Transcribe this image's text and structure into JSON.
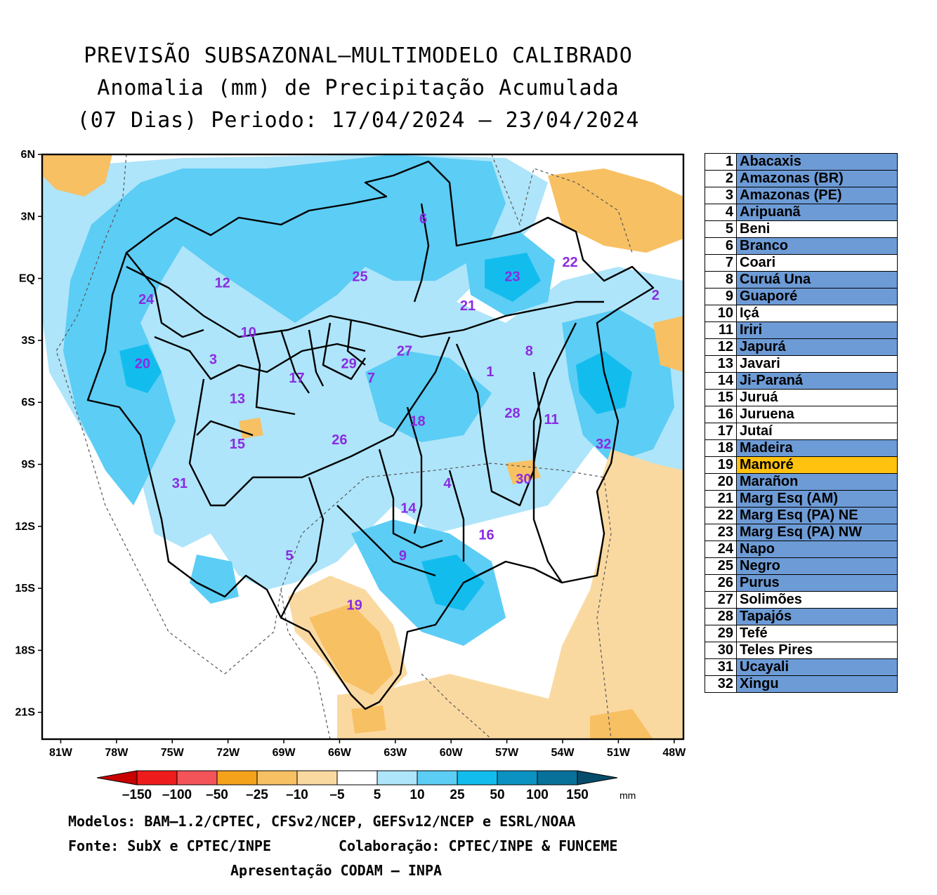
{
  "title": {
    "line1": "PREVISÃO SUBSAZONAL–MULTIMODELO CALIBRADO",
    "line2": "Anomalia (mm) de Precipitação Acumulada",
    "line3": "(07 Dias) Periodo: 17/04/2024 – 23/04/2024"
  },
  "map": {
    "lat_labels": [
      "6N",
      "3N",
      "EQ",
      "3S",
      "6S",
      "9S",
      "12S",
      "15S",
      "18S",
      "21S"
    ],
    "lon_labels": [
      "81W",
      "78W",
      "75W",
      "72W",
      "69W",
      "66W",
      "63W",
      "60W",
      "57W",
      "54W",
      "51W",
      "48W"
    ],
    "basin_labels": [
      {
        "n": "1",
        "lon": -57.9,
        "lat": -4.5
      },
      {
        "n": "2",
        "lon": -49.0,
        "lat": -0.8
      },
      {
        "n": "3",
        "lon": -72.8,
        "lat": -3.9
      },
      {
        "n": "4",
        "lon": -60.2,
        "lat": -9.9
      },
      {
        "n": "5",
        "lon": -68.7,
        "lat": -13.4
      },
      {
        "n": "6",
        "lon": -61.5,
        "lat": 2.9
      },
      {
        "n": "7",
        "lon": -64.3,
        "lat": -4.8
      },
      {
        "n": "8",
        "lon": -55.8,
        "lat": -3.5
      },
      {
        "n": "9",
        "lon": -62.6,
        "lat": -13.4
      },
      {
        "n": "10",
        "lon": -70.9,
        "lat": -2.6
      },
      {
        "n": "11",
        "lon": -54.6,
        "lat": -6.8
      },
      {
        "n": "12",
        "lon": -72.3,
        "lat": -0.2
      },
      {
        "n": "13",
        "lon": -71.5,
        "lat": -5.8
      },
      {
        "n": "14",
        "lon": -62.3,
        "lat": -11.1
      },
      {
        "n": "15",
        "lon": -71.5,
        "lat": -8.0
      },
      {
        "n": "16",
        "lon": -58.1,
        "lat": -12.4
      },
      {
        "n": "17",
        "lon": -68.3,
        "lat": -4.8
      },
      {
        "n": "18",
        "lon": -61.8,
        "lat": -6.9
      },
      {
        "n": "19",
        "lon": -65.2,
        "lat": -15.8
      },
      {
        "n": "20",
        "lon": -76.6,
        "lat": -4.1
      },
      {
        "n": "21",
        "lon": -59.1,
        "lat": -1.3
      },
      {
        "n": "22",
        "lon": -53.6,
        "lat": 0.8
      },
      {
        "n": "23",
        "lon": -56.7,
        "lat": 0.1
      },
      {
        "n": "24",
        "lon": -76.4,
        "lat": -1.0
      },
      {
        "n": "25",
        "lon": -64.9,
        "lat": 0.1
      },
      {
        "n": "26",
        "lon": -66.0,
        "lat": -7.8
      },
      {
        "n": "27",
        "lon": -62.5,
        "lat": -3.5
      },
      {
        "n": "28",
        "lon": -56.7,
        "lat": -6.5
      },
      {
        "n": "29",
        "lon": -65.5,
        "lat": -4.1
      },
      {
        "n": "30",
        "lon": -56.1,
        "lat": -9.7
      },
      {
        "n": "31",
        "lon": -74.6,
        "lat": -9.9
      },
      {
        "n": "32",
        "lon": -51.8,
        "lat": -8.0
      }
    ]
  },
  "legend": [
    {
      "n": "1",
      "name": "Abacaxis",
      "color": "#6d9bd6"
    },
    {
      "n": "2",
      "name": "Amazonas (BR)",
      "color": "#6d9bd6"
    },
    {
      "n": "3",
      "name": "Amazonas (PE)",
      "color": "#6d9bd6"
    },
    {
      "n": "4",
      "name": "Aripuanã",
      "color": "#6d9bd6"
    },
    {
      "n": "5",
      "name": "Beni",
      "color": "#ffffff"
    },
    {
      "n": "6",
      "name": "Branco",
      "color": "#6d9bd6"
    },
    {
      "n": "7",
      "name": "Coari",
      "color": "#ffffff"
    },
    {
      "n": "8",
      "name": "Curuá Una",
      "color": "#6d9bd6"
    },
    {
      "n": "9",
      "name": "Guaporé",
      "color": "#6d9bd6"
    },
    {
      "n": "10",
      "name": "Içá",
      "color": "#ffffff"
    },
    {
      "n": "11",
      "name": "Iriri",
      "color": "#6d9bd6"
    },
    {
      "n": "12",
      "name": "Japurá",
      "color": "#6d9bd6"
    },
    {
      "n": "13",
      "name": "Javari",
      "color": "#ffffff"
    },
    {
      "n": "14",
      "name": "Ji-Paraná",
      "color": "#6d9bd6"
    },
    {
      "n": "15",
      "name": "Juruá",
      "color": "#ffffff"
    },
    {
      "n": "16",
      "name": "Juruena",
      "color": "#ffffff"
    },
    {
      "n": "17",
      "name": "Jutaí",
      "color": "#ffffff"
    },
    {
      "n": "18",
      "name": "Madeira",
      "color": "#6d9bd6"
    },
    {
      "n": "19",
      "name": "Mamoré",
      "color": "#ffc20e"
    },
    {
      "n": "20",
      "name": "Marañon",
      "color": "#6d9bd6"
    },
    {
      "n": "21",
      "name": "Marg Esq (AM)",
      "color": "#6d9bd6"
    },
    {
      "n": "22",
      "name": "Marg Esq (PA) NE",
      "color": "#6d9bd6"
    },
    {
      "n": "23",
      "name": "Marg Esq (PA) NW",
      "color": "#6d9bd6"
    },
    {
      "n": "24",
      "name": "Napo",
      "color": "#6d9bd6"
    },
    {
      "n": "25",
      "name": "Negro",
      "color": "#6d9bd6"
    },
    {
      "n": "26",
      "name": "Purus",
      "color": "#6d9bd6"
    },
    {
      "n": "27",
      "name": "Solimões",
      "color": "#ffffff"
    },
    {
      "n": "28",
      "name": "Tapajós",
      "color": "#6d9bd6"
    },
    {
      "n": "29",
      "name": "Tefé",
      "color": "#ffffff"
    },
    {
      "n": "30",
      "name": "Teles Pires",
      "color": "#ffffff"
    },
    {
      "n": "31",
      "name": "Ucayali",
      "color": "#6d9bd6"
    },
    {
      "n": "32",
      "name": "Xingu",
      "color": "#6d9bd6"
    }
  ],
  "colorbar": {
    "labels": [
      "–150",
      "–100",
      "–50",
      "–25",
      "–10",
      "–5",
      "5",
      "10",
      "25",
      "50",
      "100",
      "150"
    ],
    "unit": "mm",
    "colors": [
      "#c80000",
      "#ee1c1c",
      "#f2545a",
      "#f4a21c",
      "#f7c063",
      "#fad9a1",
      "#ffffff",
      "#aee5fa",
      "#5ccdf5",
      "#12bdee",
      "#0b92c2",
      "#08719a",
      "#064d6b"
    ]
  },
  "credits": {
    "models": "Modelos: BAM–1.2/CPTEC, CFSv2/NCEP, GEFSv12/NCEP e ESRL/NOAA",
    "source": "Fonte: SubX e CPTEC/INPE",
    "collab": "Colaboração: CPTEC/INPE & FUNCEME",
    "presentation": "Apresentação CODAM – INPA"
  }
}
